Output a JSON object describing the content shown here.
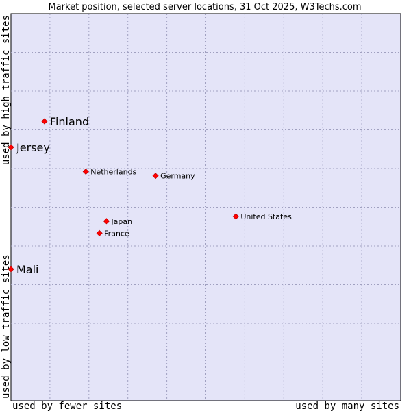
{
  "chart_data": {
    "type": "scatter",
    "title": "Market position, selected server locations, 31 Oct 2025, W3Techs.com",
    "xlabel_left": "used by fewer sites",
    "xlabel_right": "used by many sites",
    "ylabel_bottom": "used by low traffic sites",
    "ylabel_top": "used by high traffic sites",
    "xlim": [
      0,
      100
    ],
    "ylim": [
      0,
      100
    ],
    "grid": true,
    "background": "#e4e4f8",
    "marker_color": "#ff0000",
    "points": [
      {
        "name": "Finland",
        "x": 8.6,
        "y": 72.2,
        "emphasis": true
      },
      {
        "name": "Jersey",
        "x": 0.0,
        "y": 65.5,
        "emphasis": true
      },
      {
        "name": "Netherlands",
        "x": 19.2,
        "y": 59.2,
        "emphasis": false
      },
      {
        "name": "Germany",
        "x": 37.1,
        "y": 58.1,
        "emphasis": false
      },
      {
        "name": "United States",
        "x": 57.7,
        "y": 47.6,
        "emphasis": false
      },
      {
        "name": "Japan",
        "x": 24.5,
        "y": 46.4,
        "emphasis": false
      },
      {
        "name": "France",
        "x": 22.7,
        "y": 43.3,
        "emphasis": false
      },
      {
        "name": "Mali",
        "x": 0.0,
        "y": 34.0,
        "emphasis": true
      }
    ]
  }
}
